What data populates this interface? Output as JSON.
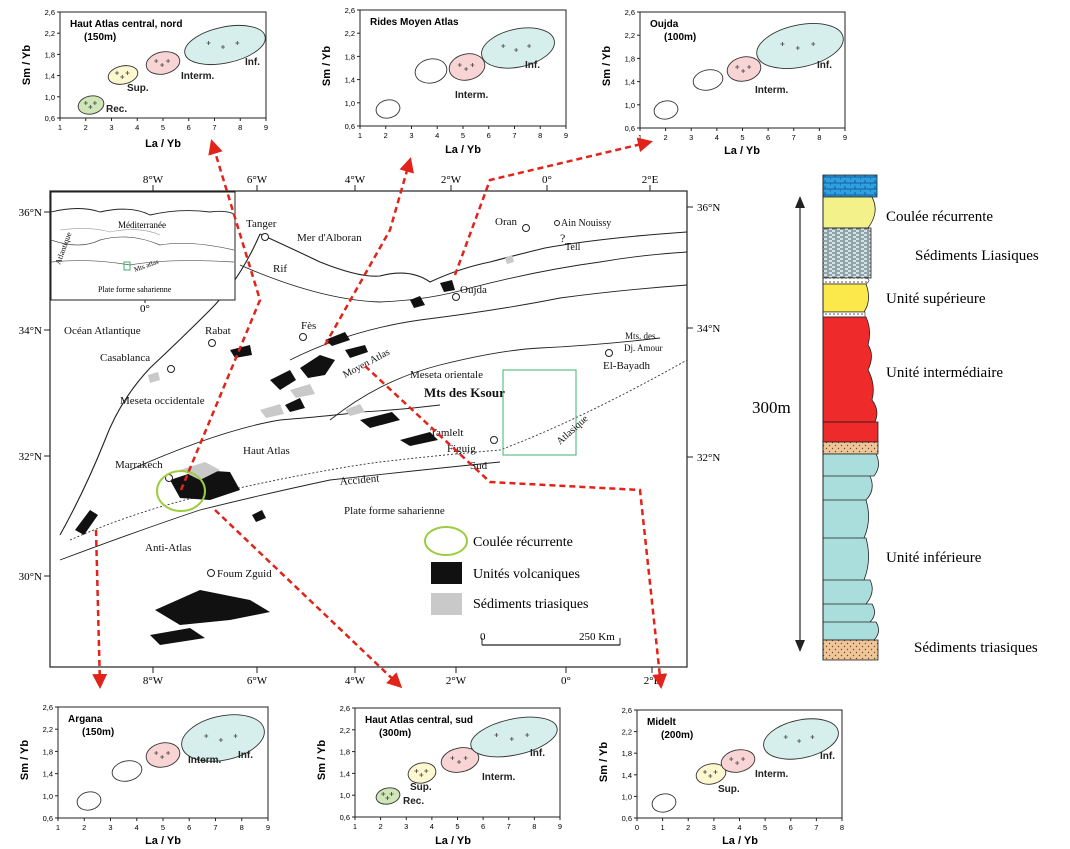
{
  "colors": {
    "arrow": "#e2231a",
    "rec_fill": "#cfe6b8",
    "sup_fill": "#fdf8cf",
    "interm_fill": "#f8d4d4",
    "inf_fill": "#d6efec",
    "legend_ring": "#9ccc3f",
    "volcanic": "#111111",
    "triassic": "#c9c9c9",
    "col_blue": "#2e9fe0",
    "col_yellow": "#f3f28a",
    "col_yellow2": "#fbe84a",
    "col_red": "#ee2a2a",
    "col_cyan": "#a9dedc",
    "col_sand": "#efc59a"
  },
  "plot_axes": {
    "xlabel": "La / Yb",
    "ylabel": "Sm / Yb",
    "yticks": [
      "0,6",
      "1,0",
      "1,4",
      "1,8",
      "2,2",
      "2,6"
    ],
    "xticks_9": [
      "1",
      "2",
      "3",
      "4",
      "5",
      "6",
      "7",
      "8",
      "9"
    ],
    "xticks_8": [
      "0",
      "1",
      "2",
      "3",
      "4",
      "5",
      "6",
      "7",
      "8"
    ]
  },
  "plots": [
    {
      "title": "Haut Atlas central, nord",
      "subtitle": "(150m)",
      "labels": {
        "rec": "Rec.",
        "sup": "Sup.",
        "interm": "Interm.",
        "inf": "Inf."
      }
    },
    {
      "title": "Rides Moyen Atlas",
      "subtitle": "",
      "labels": {
        "rec": "",
        "sup": "",
        "interm": "Interm.",
        "inf": "Inf."
      }
    },
    {
      "title": "Oujda",
      "subtitle": "(100m)",
      "labels": {
        "rec": "",
        "sup": "",
        "interm": "Interm.",
        "inf": "Inf."
      }
    },
    {
      "title": "Argana",
      "subtitle": "(150m)",
      "labels": {
        "rec": "",
        "sup": "",
        "interm": "Interm.",
        "inf": "Inf."
      }
    },
    {
      "title": "Haut Atlas central, sud",
      "subtitle": "(300m)",
      "labels": {
        "rec": "Rec.",
        "sup": "Sup.",
        "interm": "Interm.",
        "inf": "Inf."
      }
    },
    {
      "title": "Midelt",
      "subtitle": "(200m)",
      "labels": {
        "rec": "",
        "sup": "Sup.",
        "interm": "Interm.",
        "inf": "Inf."
      }
    }
  ],
  "map": {
    "lon_top": [
      "8°W",
      "6°W",
      "4°W",
      "2°W",
      "0°",
      "2°E"
    ],
    "lon_bottom": [
      "8°W",
      "6°W",
      "4°W",
      "2°W",
      "0°",
      "2°E"
    ],
    "lat_left": [
      "36°N",
      "34°N",
      "32°N",
      "30°N"
    ],
    "lat_right": [
      "36°N",
      "34°N",
      "32°N"
    ],
    "places": {
      "tanger": "Tanger",
      "alboran": "Mer d'Alboran",
      "oran": "Oran",
      "ain_nouissy": "Ain Nouissy",
      "tell": "Tell",
      "rif": "Rif",
      "oujda": "Oujda",
      "fes": "Fès",
      "rabat": "Rabat",
      "ocean": "Océan Atlantique",
      "casablanca": "Casablanca",
      "moyen_atlas": "Moyen Atlas",
      "mts_des": "Mts. des",
      "dj_amour": "Dj. Amour",
      "el_bayadh": "El-Bayadh",
      "meseta_orientale": "Meseta orientale",
      "mts_ksour": "Mts des Ksour",
      "meseta_occidentale": "Meseta occidentale",
      "atlasique": "Atlasique",
      "tamlelt": "Tamlelt",
      "figuig": "Figuig",
      "sud": "Sud",
      "haut_atlas": "Haut Atlas",
      "marrakech": "Marrakech",
      "accident": "Accident",
      "plate_forme": "Plate forme saharienne",
      "anti_atlas": "Anti-Atlas",
      "foum_zguid": "Foum Zguid"
    },
    "inset": {
      "mediterranee": "Méditerranée",
      "atlantique": "Atlantique",
      "atlas": "Mts atlas",
      "plate_forme": "Plate forme saharienne",
      "zero": "0°"
    },
    "legend": {
      "recurrent": "Coulée récurrente",
      "volcanic": "Unités volcaniques",
      "triassic": "Sédiments triasiques"
    },
    "scale": {
      "zero": "0",
      "label": "250 Km"
    }
  },
  "column": {
    "thickness": "300m",
    "labels": {
      "recurrente": "Coulée récurrente",
      "liasiques": "Sédiments Liasiques",
      "superieure": "Unité supérieure",
      "intermediaire": "Unité intermédiaire",
      "inferieure": "Unité inférieure",
      "triasiques": "Sédiments triasiques"
    }
  }
}
